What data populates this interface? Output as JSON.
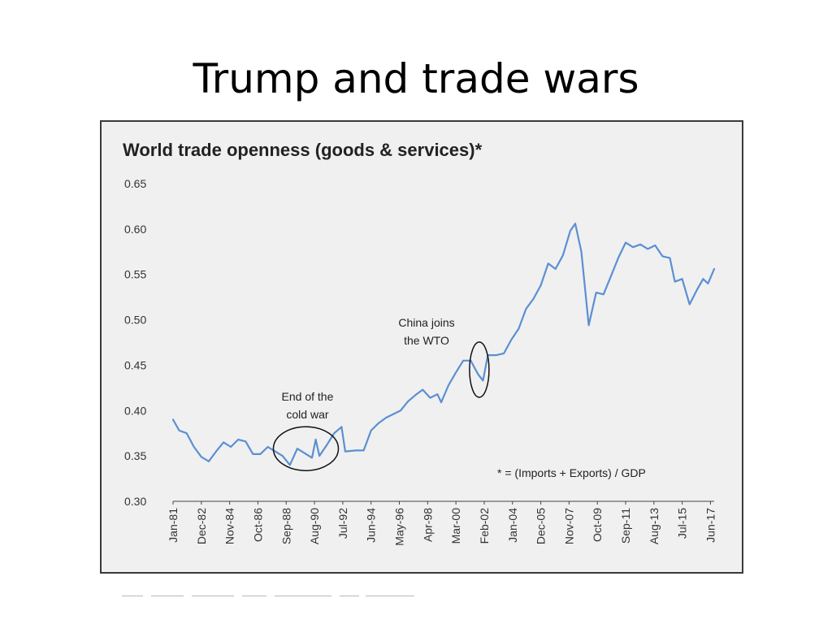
{
  "slide": {
    "title": "Trump and trade wars"
  },
  "colors": {
    "line": "#5b8fd3",
    "panel_bg": "#f0f0f0",
    "panel_border": "#3a3a3a",
    "text": "#222222",
    "annotation": "#111111"
  },
  "chart_data": {
    "type": "line",
    "title": "World trade openness (goods & services)*",
    "xlabel": "",
    "ylabel": "",
    "ylim": [
      0.3,
      0.65
    ],
    "y_ticks": [
      "0.30",
      "0.35",
      "0.40",
      "0.45",
      "0.50",
      "0.55",
      "0.60",
      "0.65"
    ],
    "x_ticks": [
      "Jan-81",
      "Dec-82",
      "Nov-84",
      "Oct-86",
      "Sep-88",
      "Aug-90",
      "Jul-92",
      "Jun-94",
      "May-96",
      "Apr-98",
      "Mar-00",
      "Feb-02",
      "Jan-04",
      "Dec-05",
      "Nov-07",
      "Oct-09",
      "Sep-11",
      "Aug-13",
      "Jul-15",
      "Jun-17"
    ],
    "grid": false,
    "series": [
      {
        "values": [
          [
            "1981-01",
            0.39
          ],
          [
            "1981-06",
            0.378
          ],
          [
            "1981-12",
            0.375
          ],
          [
            "1982-06",
            0.36
          ],
          [
            "1982-12",
            0.349
          ],
          [
            "1983-06",
            0.344
          ],
          [
            "1983-12",
            0.355
          ],
          [
            "1984-06",
            0.365
          ],
          [
            "1984-12",
            0.36
          ],
          [
            "1985-06",
            0.368
          ],
          [
            "1985-12",
            0.366
          ],
          [
            "1986-06",
            0.352
          ],
          [
            "1986-12",
            0.352
          ],
          [
            "1987-06",
            0.36
          ],
          [
            "1987-12",
            0.355
          ],
          [
            "1988-06",
            0.35
          ],
          [
            "1988-12",
            0.34
          ],
          [
            "1989-06",
            0.358
          ],
          [
            "1989-12",
            0.353
          ],
          [
            "1990-06",
            0.348
          ],
          [
            "1990-09",
            0.368
          ],
          [
            "1990-12",
            0.35
          ],
          [
            "1991-06",
            0.362
          ],
          [
            "1991-12",
            0.375
          ],
          [
            "1992-06",
            0.382
          ],
          [
            "1992-09",
            0.355
          ],
          [
            "1993-06",
            0.356
          ],
          [
            "1993-12",
            0.356
          ],
          [
            "1994-06",
            0.378
          ],
          [
            "1994-12",
            0.386
          ],
          [
            "1995-06",
            0.392
          ],
          [
            "1995-12",
            0.396
          ],
          [
            "1996-06",
            0.4
          ],
          [
            "1996-12",
            0.41
          ],
          [
            "1997-06",
            0.417
          ],
          [
            "1997-12",
            0.423
          ],
          [
            "1998-06",
            0.414
          ],
          [
            "1998-12",
            0.418
          ],
          [
            "1999-03",
            0.409
          ],
          [
            "1999-09",
            0.428
          ],
          [
            "2000-03",
            0.442
          ],
          [
            "2000-09",
            0.455
          ],
          [
            "2001-03",
            0.455
          ],
          [
            "2001-09",
            0.44
          ],
          [
            "2002-01",
            0.433
          ],
          [
            "2002-05",
            0.461
          ],
          [
            "2002-12",
            0.461
          ],
          [
            "2003-06",
            0.463
          ],
          [
            "2003-12",
            0.478
          ],
          [
            "2004-06",
            0.49
          ],
          [
            "2004-12",
            0.512
          ],
          [
            "2005-06",
            0.523
          ],
          [
            "2005-12",
            0.538
          ],
          [
            "2006-06",
            0.562
          ],
          [
            "2006-12",
            0.556
          ],
          [
            "2007-06",
            0.571
          ],
          [
            "2007-12",
            0.598
          ],
          [
            "2008-04",
            0.606
          ],
          [
            "2008-09",
            0.575
          ],
          [
            "2009-03",
            0.494
          ],
          [
            "2009-09",
            0.53
          ],
          [
            "2010-03",
            0.528
          ],
          [
            "2010-09",
            0.548
          ],
          [
            "2011-03",
            0.568
          ],
          [
            "2011-09",
            0.585
          ],
          [
            "2012-03",
            0.58
          ],
          [
            "2012-09",
            0.583
          ],
          [
            "2013-03",
            0.578
          ],
          [
            "2013-09",
            0.582
          ],
          [
            "2014-03",
            0.57
          ],
          [
            "2014-09",
            0.568
          ],
          [
            "2015-01",
            0.542
          ],
          [
            "2015-07",
            0.545
          ],
          [
            "2016-01",
            0.517
          ],
          [
            "2016-07",
            0.533
          ],
          [
            "2016-12",
            0.545
          ],
          [
            "2017-04",
            0.54
          ],
          [
            "2017-09",
            0.556
          ]
        ]
      }
    ],
    "annotations": [
      {
        "text_lines": [
          "End of the",
          "cold war"
        ],
        "x": "1990-01",
        "y": 0.358
      },
      {
        "text_lines": [
          "China joins",
          "the WTO"
        ],
        "x": "2001-10",
        "y": 0.445
      }
    ],
    "footnote": "* = (Imports + Exports) / GDP"
  }
}
